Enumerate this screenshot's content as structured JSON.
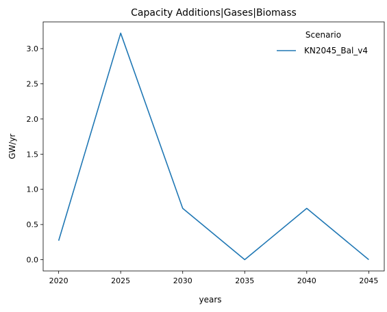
{
  "chart_data": {
    "type": "line",
    "title": "Capacity Additions|Gases|Biomass",
    "xlabel": "years",
    "ylabel": "GW/yr",
    "x": [
      2020,
      2025,
      2030,
      2035,
      2040,
      2045
    ],
    "xticks": [
      "2020",
      "2025",
      "2030",
      "2035",
      "2040",
      "2045"
    ],
    "yticks": [
      "0.0",
      "0.5",
      "1.0",
      "1.5",
      "2.0",
      "2.5",
      "3.0"
    ],
    "xlim": [
      2018.75,
      2046.25
    ],
    "ylim": [
      -0.16,
      3.38
    ],
    "grid": false,
    "legend": {
      "title": "Scenario",
      "placement": "top-right"
    },
    "series": [
      {
        "name": "KN2045_Bal_v4",
        "color": "#1f77b4",
        "values": [
          0.27,
          3.22,
          0.73,
          0.0,
          0.73,
          0.0
        ]
      }
    ]
  }
}
